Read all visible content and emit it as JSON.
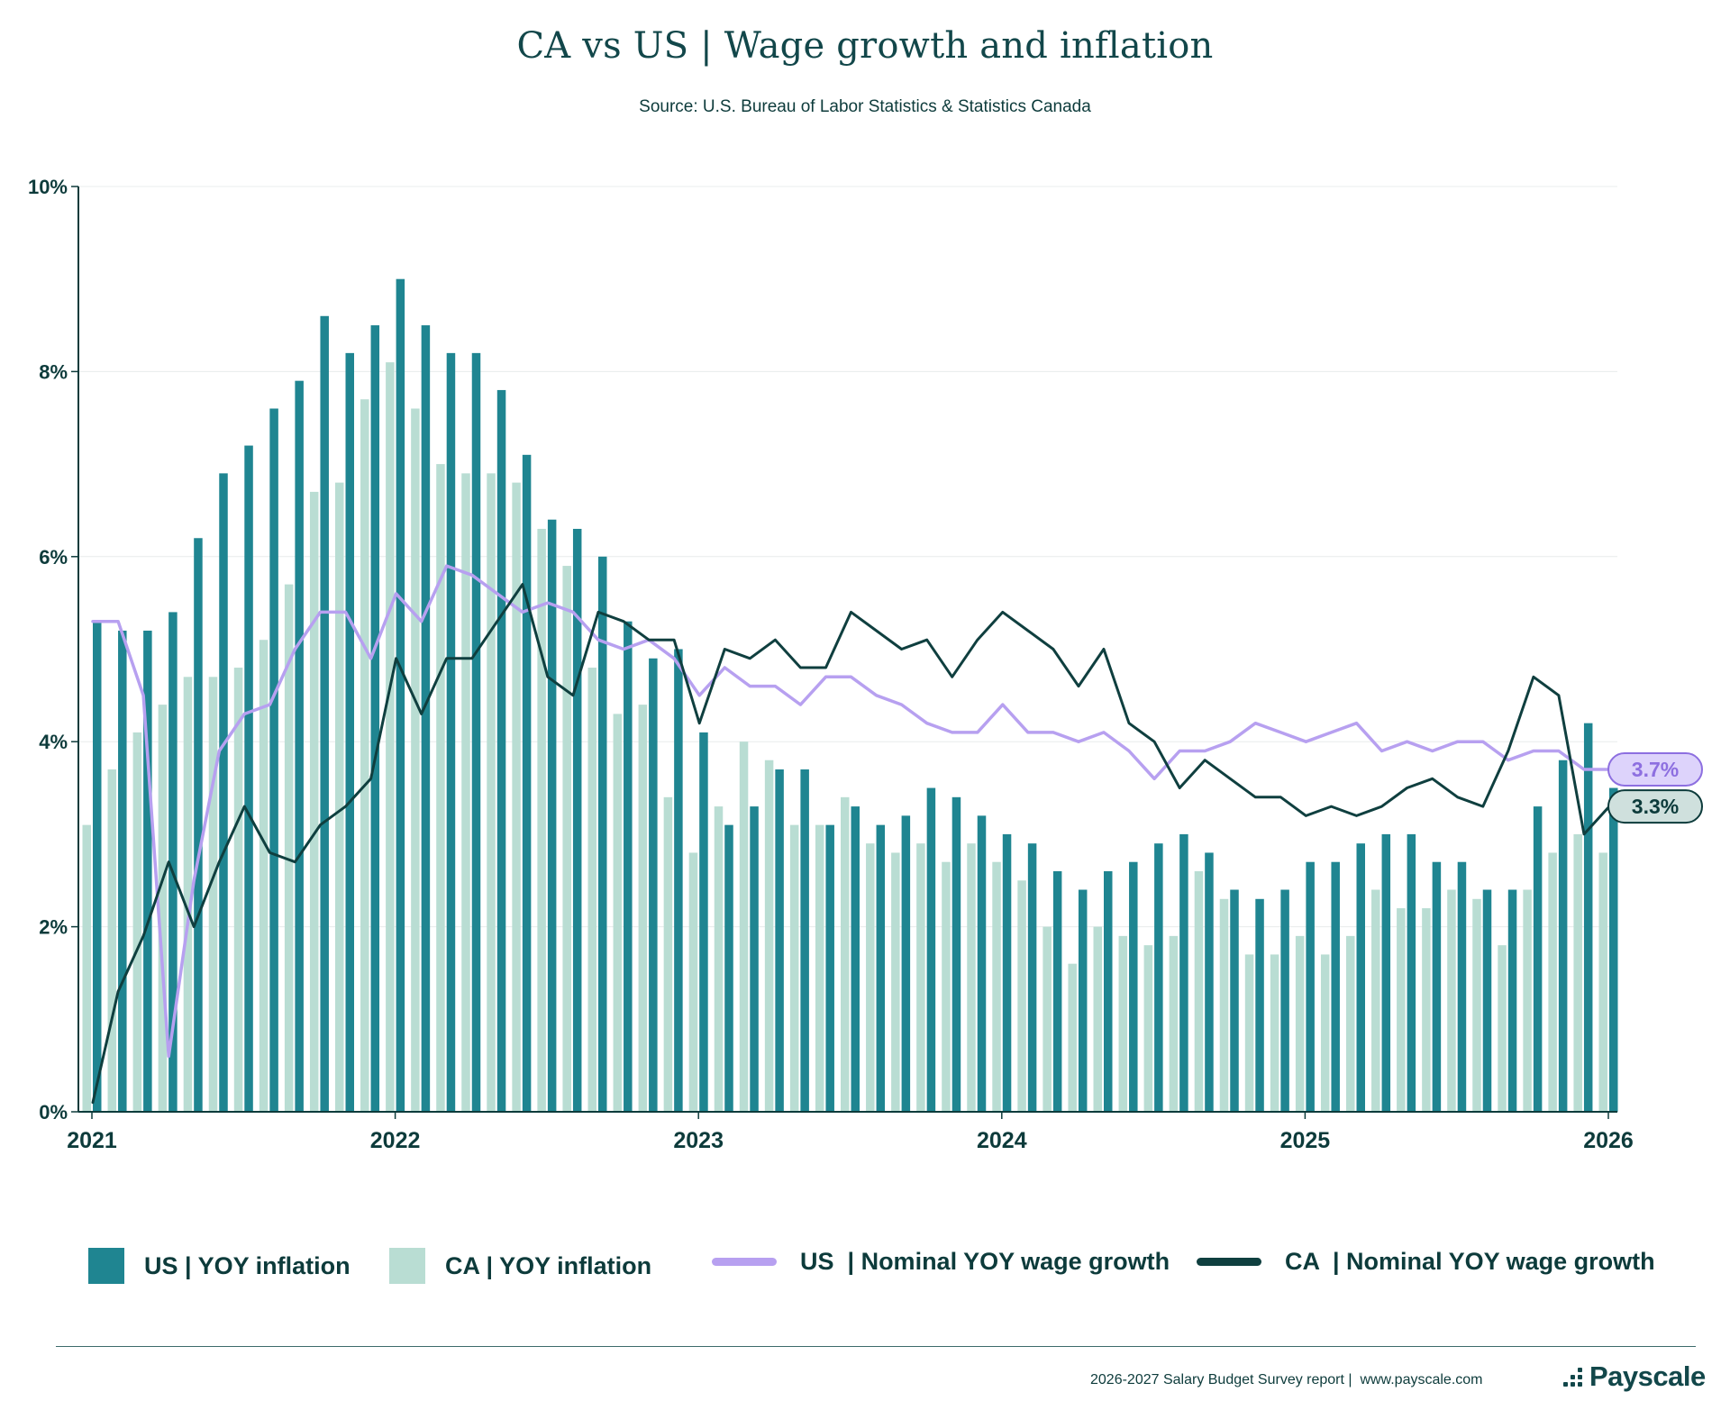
{
  "header": {
    "title": "CA vs US  | Wage growth and inflation",
    "subtitle": "Source: U.S. Bureau of Labor Statistics & Statistics Canada"
  },
  "chart_data": {
    "type": "bar",
    "title": "CA vs US  | Wage growth and inflation",
    "subtitle": "Source: U.S. Bureau of Labor Statistics & Statistics Canada",
    "xlabel": "",
    "ylabel": "",
    "ylim": [
      0,
      10
    ],
    "yticks": [
      "0%",
      "2%",
      "4%",
      "6%",
      "8%",
      "10%"
    ],
    "xticks": [
      "2021",
      "2022",
      "2023",
      "2024",
      "2025",
      "2026"
    ],
    "grid": true,
    "legend_position": "bottom",
    "categories": [
      "Jan 2021",
      "Feb 2021",
      "Mar 2021",
      "Apr 2021",
      "May 2021",
      "Jun 2021",
      "Jul 2021",
      "Aug 2021",
      "Sep 2021",
      "Oct 2021",
      "Nov 2021",
      "Dec 2021",
      "Jan 2022",
      "Feb 2022",
      "Mar 2022",
      "Apr 2022",
      "May 2022",
      "Jun 2022",
      "Jul 2022",
      "Aug 2022",
      "Sep 2022",
      "Oct 2022",
      "Nov 2022",
      "Dec 2022",
      "Jan 2023",
      "Feb 2023",
      "Mar 2023",
      "Apr 2023",
      "May 2023",
      "Jun 2023",
      "Jul 2023",
      "Aug 2023",
      "Sep 2023",
      "Oct 2023",
      "Nov 2023",
      "Dec 2023",
      "Jan 2024",
      "Feb 2024",
      "Mar 2024",
      "Apr 2024",
      "May 2024",
      "Jun 2024",
      "Jul 2024",
      "Aug 2024",
      "Sep 2024",
      "Oct 2024",
      "Nov 2024",
      "Dec 2024",
      "Jan 2025",
      "Feb 2025",
      "Mar 2025",
      "Apr 2025",
      "May 2025",
      "Jun 2025",
      "Jul 2025",
      "Aug 2025",
      "Sep 2025",
      "Oct 2025",
      "Nov 2025",
      "Dec 2025",
      "Jan 2026"
    ],
    "series": [
      {
        "name": "US | YOY inflation",
        "kind": "bar",
        "color": "#1f8591",
        "values": [
          5.3,
          5.2,
          5.2,
          5.4,
          6.2,
          6.9,
          7.2,
          7.6,
          7.9,
          8.6,
          8.2,
          8.5,
          9.0,
          8.5,
          8.2,
          8.2,
          7.8,
          7.1,
          6.4,
          6.3,
          6.0,
          5.3,
          4.9,
          5.0,
          4.1,
          3.1,
          3.3,
          3.7,
          3.7,
          3.1,
          3.3,
          3.1,
          3.2,
          3.5,
          3.4,
          3.2,
          3.0,
          2.9,
          2.6,
          2.4,
          2.6,
          2.7,
          2.9,
          3.0,
          2.8,
          2.4,
          2.3,
          2.4,
          2.7,
          2.7,
          2.9,
          3.0,
          3.0,
          2.7,
          2.7,
          2.4,
          2.4,
          3.3,
          3.8,
          4.2,
          3.5
        ]
      },
      {
        "name": "CA | YOY inflation",
        "kind": "bar",
        "color": "#b9ddd3",
        "values": [
          3.1,
          3.7,
          4.1,
          4.4,
          4.7,
          4.7,
          4.8,
          5.1,
          5.7,
          6.7,
          6.8,
          7.7,
          8.1,
          7.6,
          7.0,
          6.9,
          6.9,
          6.8,
          6.3,
          5.9,
          4.8,
          4.3,
          4.4,
          3.4,
          2.8,
          3.3,
          4.0,
          3.8,
          3.1,
          3.1,
          3.4,
          2.9,
          2.8,
          2.9,
          2.7,
          2.9,
          2.7,
          2.5,
          2.0,
          1.6,
          2.0,
          1.9,
          1.8,
          1.9,
          2.6,
          2.3,
          1.7,
          1.7,
          1.9,
          1.7,
          1.9,
          2.4,
          2.2,
          2.2,
          2.4,
          2.3,
          1.8,
          2.4,
          2.8,
          3.0,
          2.8
        ]
      },
      {
        "name": "US | Nominal YOY wage growth",
        "kind": "line",
        "color": "#b7a0f0",
        "values": [
          5.3,
          5.3,
          4.5,
          0.6,
          2.5,
          3.9,
          4.3,
          4.4,
          5.0,
          5.4,
          5.4,
          4.9,
          5.6,
          5.3,
          5.9,
          5.8,
          5.6,
          5.4,
          5.5,
          5.4,
          5.1,
          5.0,
          5.1,
          4.9,
          4.5,
          4.8,
          4.6,
          4.6,
          4.4,
          4.7,
          4.7,
          4.5,
          4.4,
          4.2,
          4.1,
          4.1,
          4.4,
          4.1,
          4.1,
          4.0,
          4.1,
          3.9,
          3.6,
          3.9,
          3.9,
          4.0,
          4.2,
          4.1,
          4.0,
          4.1,
          4.2,
          3.9,
          4.0,
          3.9,
          4.0,
          4.0,
          3.8,
          3.9,
          3.9,
          3.7,
          3.7
        ]
      },
      {
        "name": "CA | Nominal YOY wage growth",
        "kind": "line",
        "color": "#0f3f3f",
        "values": [
          0.1,
          1.3,
          1.9,
          2.7,
          2.0,
          2.7,
          3.3,
          2.8,
          2.7,
          3.1,
          3.3,
          3.6,
          4.9,
          4.3,
          4.9,
          4.9,
          5.3,
          5.7,
          4.7,
          4.5,
          5.4,
          5.3,
          5.1,
          5.1,
          4.2,
          5.0,
          4.9,
          5.1,
          4.8,
          4.8,
          5.4,
          5.2,
          5.0,
          5.1,
          4.7,
          5.1,
          5.4,
          5.2,
          5.0,
          4.6,
          5.0,
          4.2,
          4.0,
          3.5,
          3.8,
          3.6,
          3.4,
          3.4,
          3.2,
          3.3,
          3.2,
          3.3,
          3.5,
          3.6,
          3.4,
          3.3,
          3.9,
          4.7,
          4.5,
          3.0,
          3.3
        ]
      }
    ],
    "end_labels": [
      {
        "series": "US | Nominal YOY wage growth",
        "text": "3.7%"
      },
      {
        "series": "CA | Nominal YOY wage growth",
        "text": "3.3%"
      }
    ]
  },
  "legend": {
    "items": [
      {
        "label": "US | YOY inflation"
      },
      {
        "label": "CA | YOY inflation"
      },
      {
        "label": "US  | Nominal YOY wage growth"
      },
      {
        "label": "CA  | Nominal YOY wage growth"
      }
    ]
  },
  "footer": {
    "text": "2026-2027 Salary Budget Survey report |  www.payscale.com",
    "brand": "Payscale"
  }
}
